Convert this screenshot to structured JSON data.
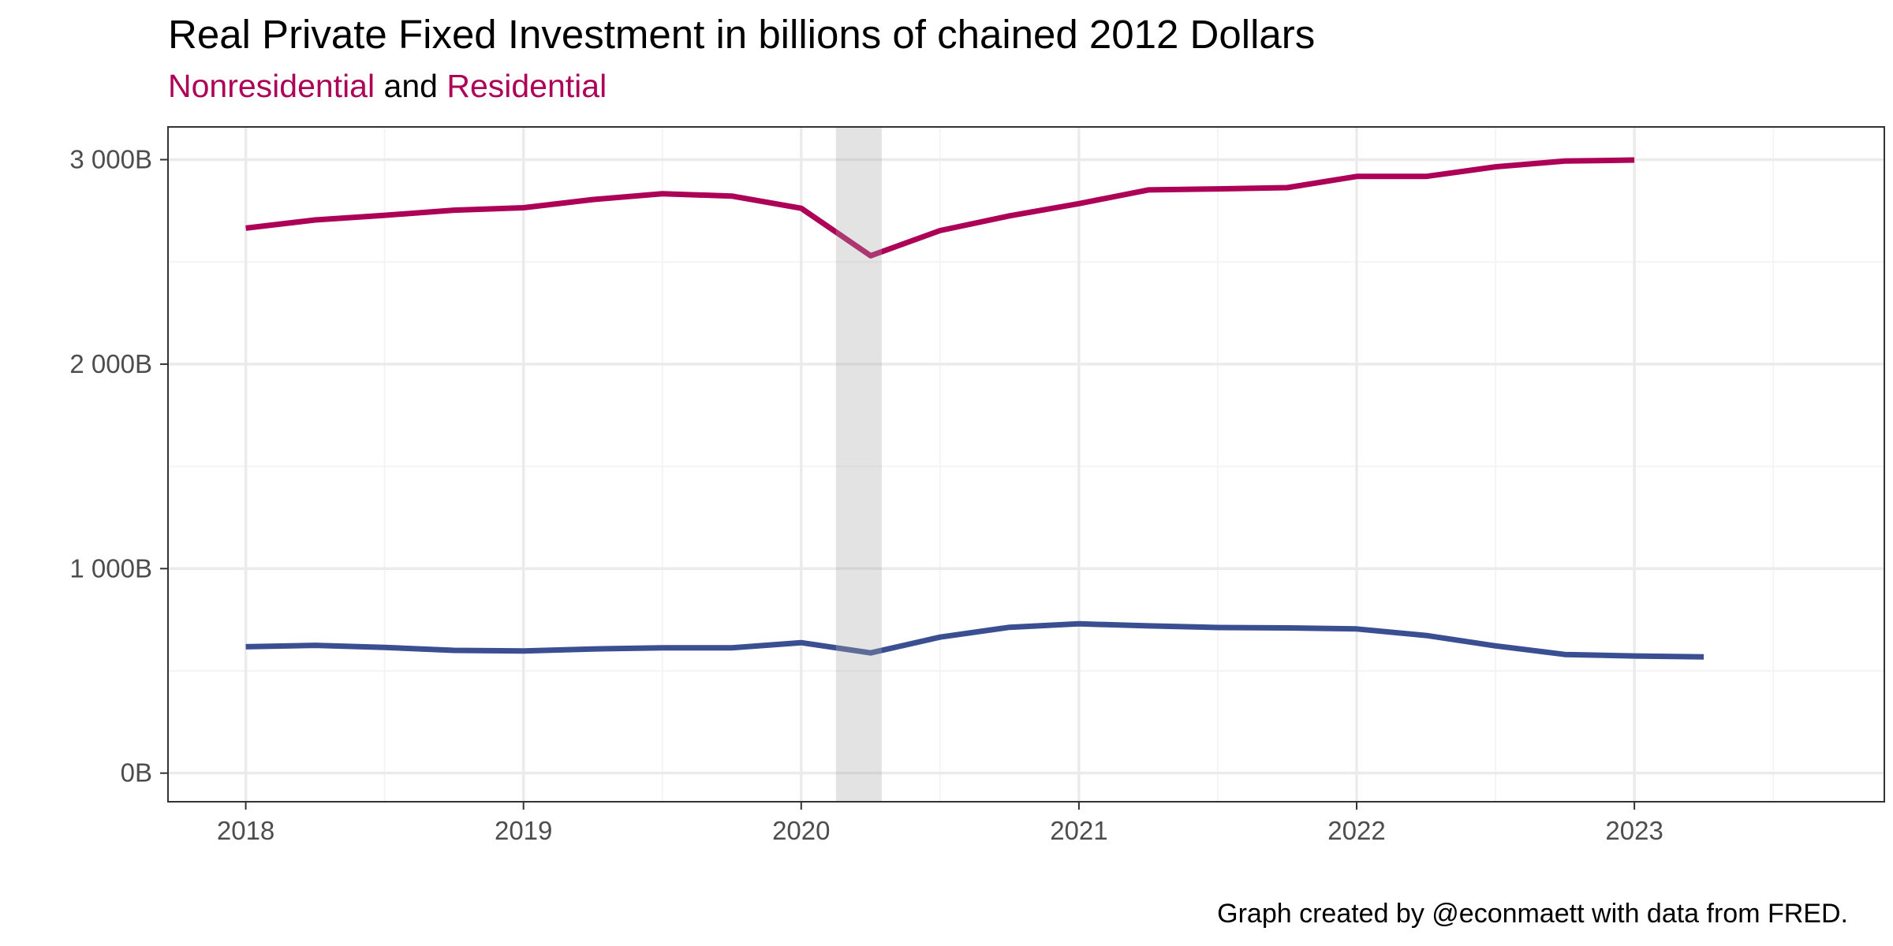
{
  "colors": {
    "nonresidential": "#ad0057",
    "residential": "#3a4f91",
    "recession_shade": "#e3e3e3",
    "grid_major": "#ebebeb",
    "grid_minor": "#f4f4f4",
    "axis_text": "#4d4d4d"
  },
  "chart_data": {
    "type": "line",
    "title": "Real Private Fixed Investment in billions of chained 2012 Dollars",
    "subtitle_parts": [
      "Nonresidential",
      "and",
      "Residential"
    ],
    "caption": "Graph created by @econmaett with data from FRED.",
    "xlabel": "",
    "ylabel": "",
    "xlim": [
      2017.72,
      2023.9
    ],
    "ylim": [
      -140,
      3160
    ],
    "x_ticks": [
      2018,
      2019,
      2020,
      2021,
      2022,
      2023
    ],
    "x_tick_labels": [
      "2018",
      "2019",
      "2020",
      "2021",
      "2022",
      "2023"
    ],
    "y_ticks": [
      0,
      1000,
      2000,
      3000
    ],
    "y_tick_labels": [
      "0B",
      "1 000B",
      "2 000B",
      "3 000B"
    ],
    "grid": true,
    "shaded_periods": [
      [
        2020.125,
        2020.29
      ]
    ],
    "series": [
      {
        "name": "Nonresidential",
        "color": "#ad0057",
        "x": [
          2018.0,
          2018.25,
          2018.5,
          2018.75,
          2019.0,
          2019.25,
          2019.5,
          2019.75,
          2020.0,
          2020.25,
          2020.5,
          2020.75,
          2021.0,
          2021.25,
          2021.5,
          2021.75,
          2022.0,
          2022.25,
          2022.5,
          2022.75,
          2023.0
        ],
        "values": [
          2665,
          2705,
          2728,
          2753,
          2765,
          2805,
          2833,
          2822,
          2762,
          2530,
          2653,
          2725,
          2785,
          2852,
          2857,
          2863,
          2918,
          2918,
          2965,
          2993,
          2998
        ]
      },
      {
        "name": "Residential",
        "color": "#3a4f91",
        "x": [
          2018.0,
          2018.25,
          2018.5,
          2018.75,
          2019.0,
          2019.25,
          2019.5,
          2019.75,
          2020.0,
          2020.25,
          2020.5,
          2020.75,
          2021.0,
          2021.25,
          2021.5,
          2021.75,
          2022.0,
          2022.25,
          2022.5,
          2022.75,
          2023.0,
          2023.25
        ],
        "values": [
          618,
          625,
          615,
          600,
          597,
          607,
          613,
          613,
          638,
          588,
          665,
          713,
          730,
          720,
          712,
          710,
          705,
          673,
          622,
          580,
          573,
          568
        ]
      }
    ]
  }
}
